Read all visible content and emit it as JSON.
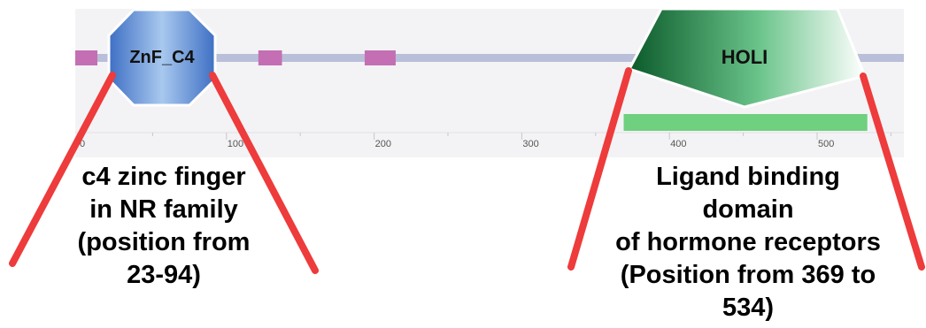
{
  "diagram": {
    "protein_length": 560,
    "domains": [
      {
        "name": "ZnF_C4",
        "start": 23,
        "end": 94,
        "shape": "hexagon"
      },
      {
        "name": "HOLI",
        "start": 369,
        "end": 534,
        "shape": "pentagon"
      }
    ],
    "low_complexity_segments": [
      {
        "start": 0,
        "end": 15
      },
      {
        "start": 124,
        "end": 140
      },
      {
        "start": 196,
        "end": 217
      }
    ],
    "green_bar": {
      "start": 369,
      "end": 534
    },
    "ticks": [
      "0",
      "100",
      "200",
      "300",
      "400",
      "500"
    ],
    "colors": {
      "backbone": "#b9bfd9",
      "segment": "#c46fb4",
      "green_bar": "#6fd07f",
      "callout_line": "#ee3b3b",
      "track_bg": "#f3f3f5"
    }
  },
  "annotations": {
    "left_lines": [
      "c4 zinc finger",
      "in NR family",
      "(position from",
      "23-94)"
    ],
    "right_lines": [
      "Ligand binding",
      "domain",
      "of hormone receptors",
      "(Position from 369 to",
      "534)"
    ]
  }
}
